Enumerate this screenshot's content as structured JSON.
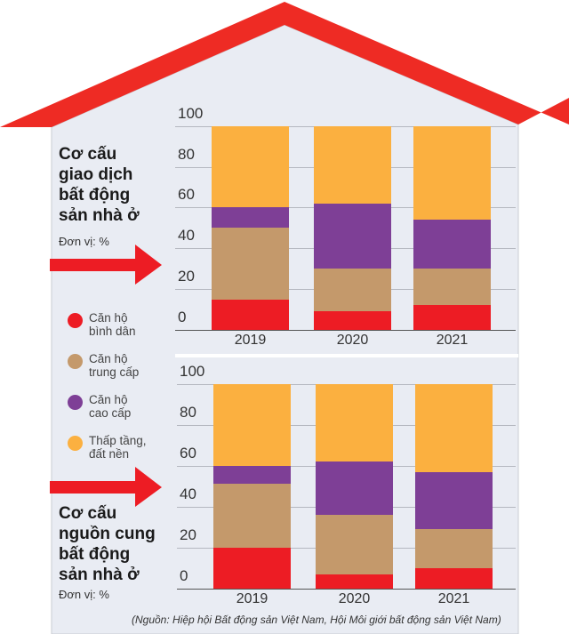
{
  "colors": {
    "red": "#ed1c24",
    "tan": "#c4996b",
    "purple": "#7e3f96",
    "orange": "#fbb040",
    "roof": "#ee2b24",
    "bg": "#e9ecf3"
  },
  "legend": [
    {
      "line1": "Căn hộ",
      "line2": "bình dân",
      "color": "#ed1c24"
    },
    {
      "line1": "Căn hộ",
      "line2": "trung cấp",
      "color": "#c4996b"
    },
    {
      "line1": "Căn hộ",
      "line2": "cao cấp",
      "color": "#7e3f96"
    },
    {
      "line1": "Thấp tầng,",
      "line2": "đất nền",
      "color": "#fbb040"
    }
  ],
  "source": "(Nguồn: Hiệp hội Bất động sản Việt Nam, Hội Môi giới bất động sản Việt Nam)",
  "chart_data": [
    {
      "type": "bar",
      "stacked": true,
      "title_lines": [
        "Cơ cấu",
        "giao dịch",
        "bất động",
        "sản nhà ở"
      ],
      "unit": "Đơn vị: %",
      "categories": [
        "2019",
        "2020",
        "2021"
      ],
      "yticks": [
        "0",
        "20",
        "40",
        "60",
        "80",
        "100"
      ],
      "ylim": [
        0,
        100
      ],
      "series": [
        {
          "name": "Căn hộ bình dân",
          "values": [
            15,
            9,
            12
          ]
        },
        {
          "name": "Căn hộ trung cấp",
          "values": [
            35,
            21,
            18
          ]
        },
        {
          "name": "Căn hộ cao cấp",
          "values": [
            10,
            32,
            24
          ]
        },
        {
          "name": "Thấp tầng, đất nền",
          "values": [
            40,
            38,
            46
          ]
        }
      ]
    },
    {
      "type": "bar",
      "stacked": true,
      "title_lines": [
        "Cơ cấu",
        "nguồn cung",
        "bất động",
        "sản nhà ở"
      ],
      "unit": "Đơn vị: %",
      "categories": [
        "2019",
        "2020",
        "2021"
      ],
      "yticks": [
        "0",
        "20",
        "40",
        "60",
        "80",
        "100"
      ],
      "ylim": [
        0,
        100
      ],
      "series": [
        {
          "name": "Căn hộ bình dân",
          "values": [
            20,
            7,
            10
          ]
        },
        {
          "name": "Căn hộ trung cấp",
          "values": [
            31,
            29,
            19
          ]
        },
        {
          "name": "Căn hộ cao cấp",
          "values": [
            9,
            26,
            28
          ]
        },
        {
          "name": "Thấp tầng, đất nền",
          "values": [
            40,
            38,
            43
          ]
        }
      ]
    }
  ]
}
